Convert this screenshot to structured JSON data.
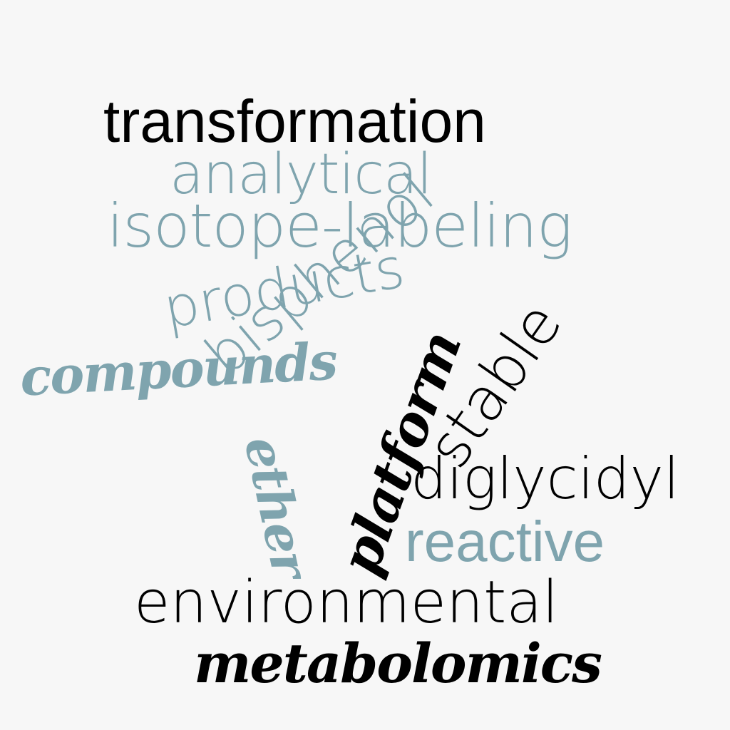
{
  "word_cloud": {
    "words": {
      "transformation": "transformation",
      "analytical": "analytical",
      "isotope_labeling": "isotope-labeling",
      "products": "products",
      "compounds": "compounds",
      "bisphenol": "bisphenol",
      "stable": "stable",
      "platform": "platform",
      "ether": "ether",
      "diglycidyl": "diglycidyl",
      "reactive": "reactive",
      "environmental": "environmental",
      "metabolomics": "metabolomics"
    },
    "colors": {
      "dark": "#000000",
      "teal": "#7fa4ae",
      "background": "#f7f7f7"
    }
  }
}
